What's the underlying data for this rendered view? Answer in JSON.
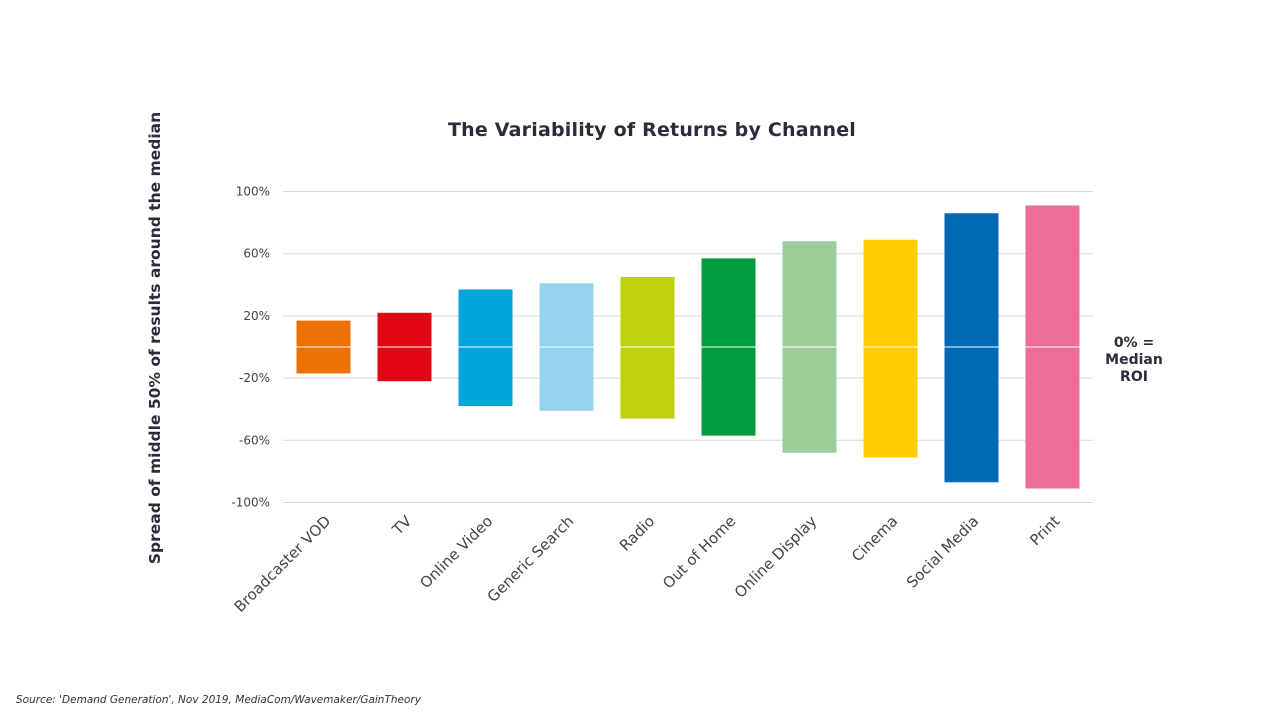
{
  "chart_data": {
    "type": "bar",
    "subtype": "floating-range",
    "title": "The Variability of Returns by Channel",
    "xlabel": "",
    "ylabel": "Spread of middle 50% of results around the median",
    "ylim": [
      -100,
      100
    ],
    "yticks": [
      "100%",
      "60%",
      "20%",
      "-20%",
      "-60%",
      "-100%"
    ],
    "ytick_values": [
      100,
      60,
      20,
      -20,
      -60,
      -100
    ],
    "grid": true,
    "annotation": [
      "0% =",
      "Median",
      "ROI"
    ],
    "categories": [
      "Broadcaster VOD",
      "TV",
      "Online Video",
      "Generic Search",
      "Radio",
      "Out of Home",
      "Online Display",
      "Cinema",
      "Social Media",
      "Print"
    ],
    "high": [
      17,
      22,
      37,
      41,
      45,
      57,
      68,
      69,
      86,
      91
    ],
    "low": [
      -17,
      -22,
      -38,
      -41,
      -46,
      -57,
      -68,
      -71,
      -87,
      -91
    ],
    "colors": [
      "#ed7004",
      "#e20613",
      "#00a5d9",
      "#93d3ee",
      "#bdd10d",
      "#009c3d",
      "#9dcc99",
      "#ffcc00",
      "#0069b4",
      "#ec6d98"
    ]
  },
  "source": "Source: 'Demand Generation', Nov 2019, MediaCom/Wavemaker/GainTheory"
}
